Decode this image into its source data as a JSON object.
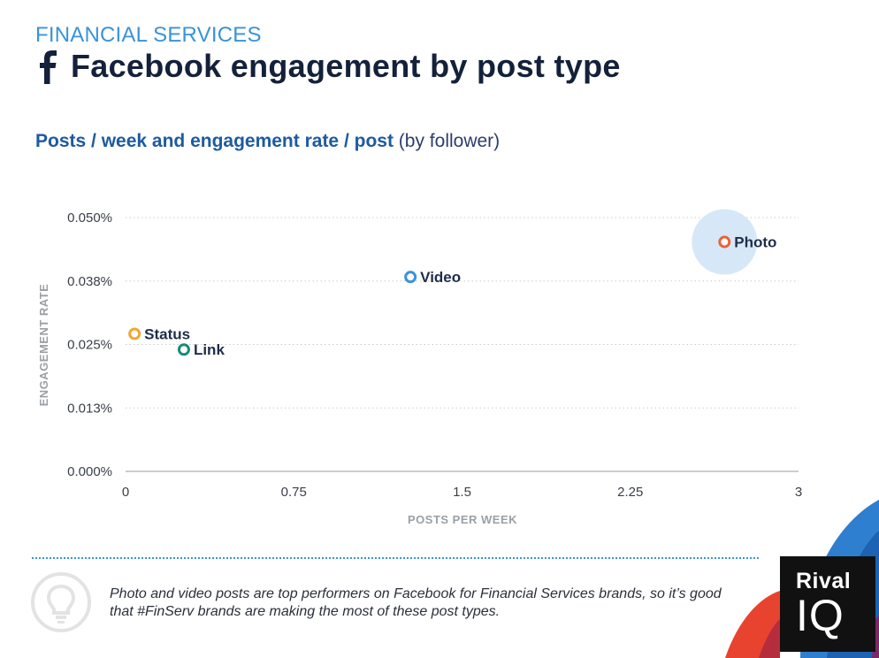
{
  "header": {
    "kicker": "FINANCIAL SERVICES",
    "title": "Facebook engagement by post type",
    "subtitle_main": "Posts / week and engagement rate / post",
    "subtitle_note": "(by follower)"
  },
  "chart_data": {
    "type": "scatter",
    "xlabel": "POSTS PER WEEK",
    "ylabel": "ENGAGEMENT RATE",
    "xlim": [
      0,
      3
    ],
    "ylim": [
      0,
      0.05
    ],
    "x_ticks": [
      "0",
      "0.75",
      "1.5",
      "2.25",
      "3"
    ],
    "y_ticks": [
      "0.000%",
      "0.013%",
      "0.025%",
      "0.038%",
      "0.050%"
    ],
    "grid": "horizontal dotted",
    "points": [
      {
        "label": "Photo",
        "x": 2.67,
        "y": 0.0452,
        "color": "#e8633a",
        "highlight": true
      },
      {
        "label": "Video",
        "x": 1.27,
        "y": 0.0383,
        "color": "#3a93d8",
        "highlight": false
      },
      {
        "label": "Status",
        "x": 0.04,
        "y": 0.0271,
        "color": "#f0a830",
        "highlight": false
      },
      {
        "label": "Link",
        "x": 0.26,
        "y": 0.024,
        "color": "#1a8a7a",
        "highlight": false
      }
    ]
  },
  "footer": {
    "insight": "Photo and video posts are top performers on Facebook for Financial Services brands, so it’s good that #FinServ brands are making the most of these post types."
  },
  "logo": {
    "line1": "Rival",
    "line2": "IQ"
  },
  "colors": {
    "accent_blue": "#3a93d8",
    "title_navy": "#14213a",
    "highlight_bubble": "#d6e8f8"
  },
  "icons": [
    "facebook-icon",
    "lightbulb-icon"
  ]
}
